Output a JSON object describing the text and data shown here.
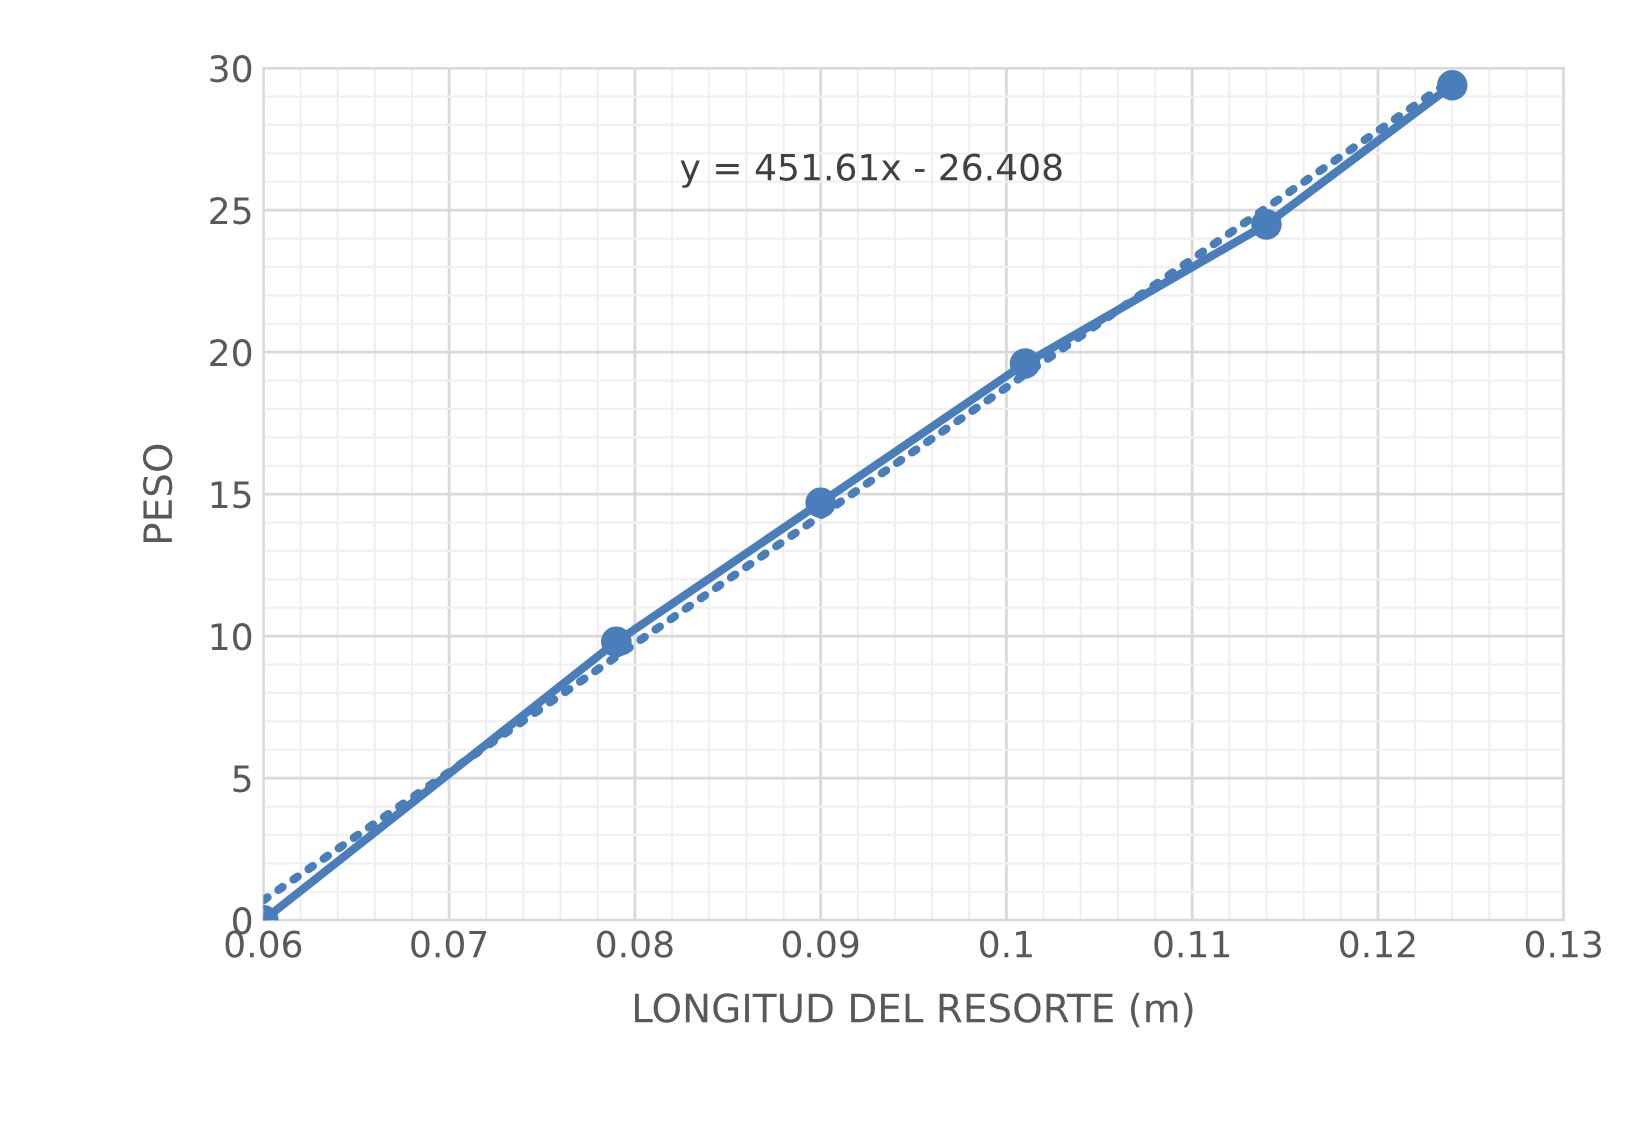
{
  "chart_data": {
    "type": "line",
    "xlabel": "LONGITUD DEL RESORTE (m)",
    "ylabel": "PESO",
    "series": [
      {
        "color": "#4a7ebb",
        "marker": "circle",
        "line_style": "solid",
        "x": [
          0.06,
          0.079,
          0.09,
          0.101,
          0.114,
          0.124
        ],
        "values": [
          0,
          9.8,
          14.7,
          19.6,
          24.5,
          29.4
        ]
      },
      {
        "color": "#4a7ebb",
        "marker": "none",
        "line_style": "dotted",
        "x": [
          0.06,
          0.124
        ],
        "values": [
          0.7,
          29.6
        ]
      }
    ],
    "annotations": [
      "y = 451.61x - 26.408"
    ],
    "xlim": [
      0.06,
      0.13
    ],
    "xticks": [
      0.06,
      0.07,
      0.08,
      0.09,
      0.1,
      0.11,
      0.12,
      0.13
    ],
    "ylim": [
      0,
      30
    ],
    "yticks": [
      0,
      5,
      10,
      15,
      20,
      25,
      30
    ],
    "grid": true
  }
}
